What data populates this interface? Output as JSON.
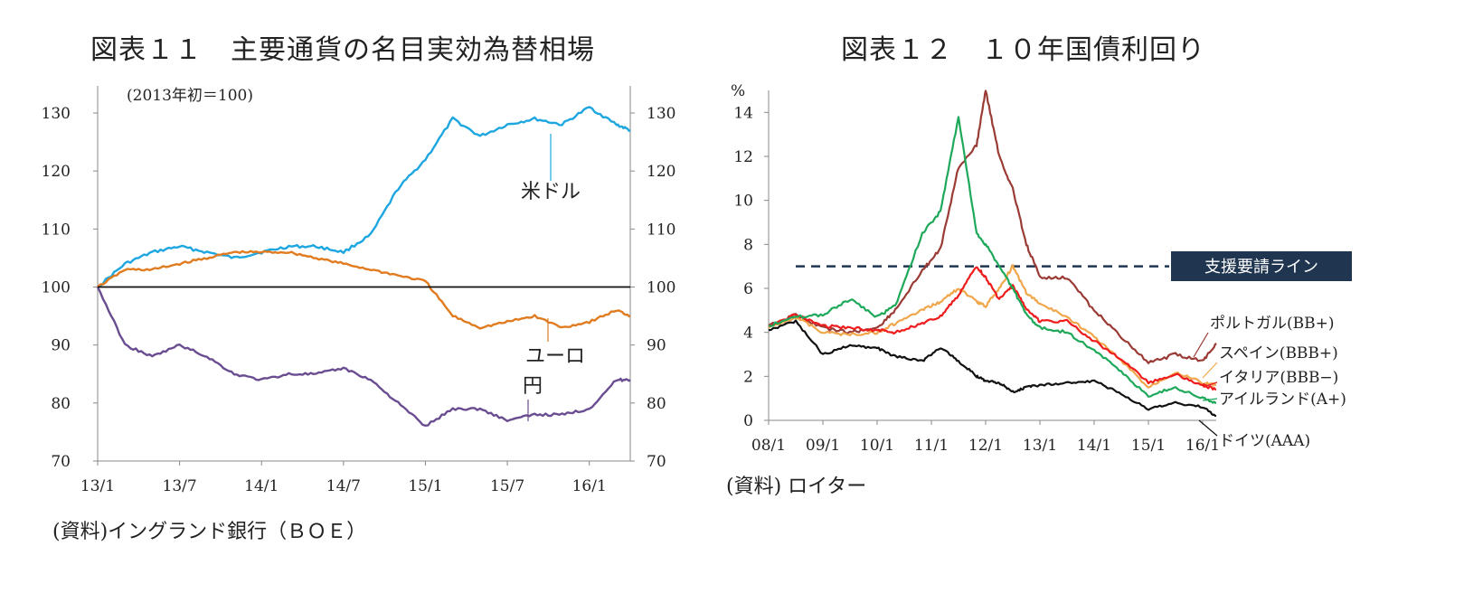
{
  "left": {
    "title": "図表１１　主要通貨の名目実効為替相場",
    "source": "(資料)イングランド銀行（ＢＯＥ）",
    "chart_data": {
      "type": "line",
      "title": "図表１１　主要通貨の名目実効為替相場",
      "note": "(2013年初＝100)",
      "x_tick_labels": [
        "13/1",
        "13/7",
        "14/1",
        "14/7",
        "15/1",
        "15/7",
        "16/1"
      ],
      "x_range": [
        "2013-01",
        "2016-04"
      ],
      "ylim": [
        70,
        130
      ],
      "y_ticks": [
        70,
        80,
        90,
        100,
        110,
        120,
        130
      ],
      "dual_y_axis": true,
      "grid": false,
      "baseline": 100,
      "x": [
        "2013-01",
        "2013-03",
        "2013-05",
        "2013-07",
        "2013-09",
        "2013-11",
        "2014-01",
        "2014-03",
        "2014-05",
        "2014-07",
        "2014-09",
        "2014-11",
        "2015-01",
        "2015-03",
        "2015-05",
        "2015-07",
        "2015-09",
        "2015-11",
        "2016-01",
        "2016-03",
        "2016-04"
      ],
      "series": [
        {
          "name": "米ドル",
          "color": "#1ea6e0",
          "values": [
            100,
            104,
            106,
            107,
            106,
            105,
            106,
            107,
            107,
            106,
            109,
            117,
            122,
            129,
            126,
            128,
            129,
            128,
            131,
            128,
            127
          ]
        },
        {
          "name": "ユーロ",
          "color": "#e07b20",
          "values": [
            100,
            103,
            103,
            104,
            105,
            106,
            106,
            106,
            105,
            104,
            103,
            102,
            101,
            95,
            93,
            94,
            95,
            93,
            94,
            96,
            95
          ]
        },
        {
          "name": "円",
          "color": "#6a4d91",
          "values": [
            100,
            90,
            88,
            90,
            88,
            85,
            84,
            85,
            85,
            86,
            84,
            80,
            76,
            79,
            79,
            77,
            78,
            78,
            79,
            84,
            84
          ]
        }
      ]
    }
  },
  "right": {
    "title": "図表１２　１０年国債利回り",
    "source": "(資料) ロイター",
    "support_line_label": "支援要請ライン",
    "chart_data": {
      "type": "line",
      "title": "図表１２　１０年国債利回り",
      "ylabel": "%",
      "ylim": [
        0,
        15
      ],
      "y_ticks": [
        0,
        2,
        4,
        6,
        8,
        10,
        12,
        14
      ],
      "x_tick_labels": [
        "08/1",
        "09/1",
        "10/1",
        "11/1",
        "12/1",
        "13/1",
        "14/1",
        "15/1",
        "16/1"
      ],
      "x_range": [
        "2008-01",
        "2016-04"
      ],
      "grid": false,
      "reference_line": {
        "value": 7,
        "label": "支援要請ライン",
        "style": "dashed",
        "color": "#1f3550"
      },
      "x": [
        "2008-01",
        "2008-07",
        "2009-01",
        "2009-07",
        "2010-01",
        "2010-05",
        "2010-11",
        "2011-03",
        "2011-07",
        "2011-11",
        "2012-01",
        "2012-04",
        "2012-07",
        "2012-10",
        "2013-01",
        "2013-07",
        "2014-01",
        "2014-07",
        "2015-01",
        "2015-07",
        "2016-01",
        "2016-04"
      ],
      "series": [
        {
          "name": "ポルトガル(BB+)",
          "color": "#9a3b36",
          "values": [
            4.3,
            4.8,
            4.2,
            4.0,
            4.2,
            5.0,
            6.8,
            7.8,
            11.5,
            12.5,
            15.0,
            12.0,
            10.5,
            8.0,
            6.5,
            6.5,
            5.0,
            3.8,
            2.6,
            3.0,
            2.7,
            3.5
          ]
        },
        {
          "name": "スペイン(BBB+)",
          "color": "#f0a64b",
          "values": [
            4.2,
            4.7,
            4.0,
            3.9,
            4.0,
            4.4,
            5.0,
            5.4,
            6.0,
            5.4,
            5.2,
            6.0,
            7.0,
            5.8,
            5.3,
            4.7,
            3.8,
            2.7,
            1.5,
            2.2,
            1.7,
            1.6
          ]
        },
        {
          "name": "イタリア(BBB−)",
          "color": "#ee1c1c",
          "values": [
            4.3,
            4.8,
            4.3,
            4.2,
            4.1,
            4.0,
            4.4,
            4.7,
            5.7,
            7.0,
            6.5,
            5.5,
            6.1,
            5.1,
            4.5,
            4.5,
            3.6,
            2.8,
            1.7,
            2.1,
            1.6,
            1.4
          ]
        },
        {
          "name": "アイルランド(A+)",
          "color": "#1ea85a",
          "values": [
            4.3,
            4.7,
            4.8,
            5.5,
            4.7,
            5.2,
            8.5,
            9.5,
            13.8,
            8.5,
            8.0,
            7.0,
            6.0,
            4.8,
            4.2,
            4.0,
            3.2,
            2.2,
            1.1,
            1.5,
            1.0,
            0.8
          ]
        },
        {
          "name": "ドイツ(AAA)",
          "color": "#111111",
          "values": [
            4.1,
            4.5,
            3.0,
            3.4,
            3.3,
            2.9,
            2.7,
            3.3,
            2.7,
            2.0,
            1.8,
            1.7,
            1.3,
            1.5,
            1.6,
            1.7,
            1.8,
            1.2,
            0.5,
            0.8,
            0.6,
            0.2
          ]
        }
      ]
    }
  }
}
